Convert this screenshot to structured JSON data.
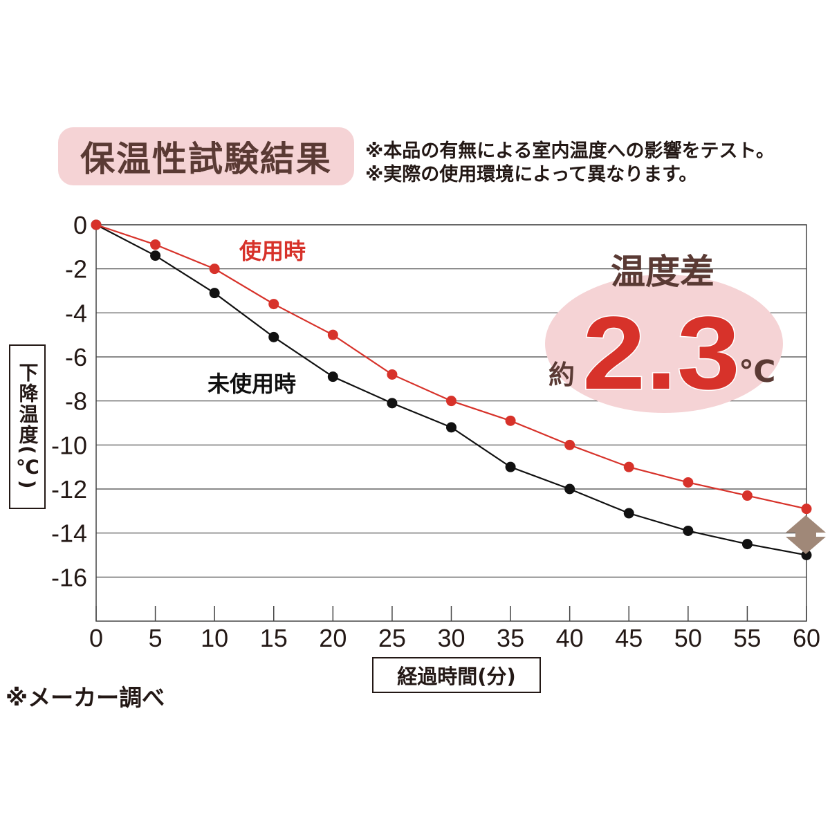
{
  "header": {
    "title": "保温性試験結果",
    "notes": [
      "※本品の有無による室内温度への影響をテスト。",
      "※実際の使用環境によって異なります。"
    ]
  },
  "source_note": "※メーカー調べ",
  "callout": {
    "title": "温度差",
    "prefix": "約",
    "value": "2.3",
    "unit": "℃"
  },
  "colors": {
    "used": "#d7322a",
    "unused": "#111111",
    "badge": "#f5d3d5",
    "arrow": "#a08878"
  },
  "chart_data": {
    "type": "line",
    "xlabel": "経過時間(分)",
    "ylabel": "下降温度(℃)",
    "x": [
      0,
      5,
      10,
      15,
      20,
      25,
      30,
      35,
      40,
      45,
      50,
      55,
      60
    ],
    "xlim": [
      0,
      60
    ],
    "ylim": [
      -18,
      0
    ],
    "xticks": [
      "0",
      "5",
      "10",
      "15",
      "20",
      "25",
      "30",
      "35",
      "40",
      "45",
      "50",
      "55",
      "60"
    ],
    "yticks": [
      "0",
      "-2",
      "-4",
      "-6",
      "-8",
      "-10",
      "-12",
      "-14",
      "-16"
    ],
    "grid": true,
    "series": [
      {
        "name": "使用時",
        "color": "#d7322a",
        "values": [
          0,
          -0.9,
          -2.0,
          -3.6,
          -5.0,
          -6.8,
          -8.0,
          -8.9,
          -10.0,
          -11.0,
          -11.7,
          -12.3,
          -12.9
        ]
      },
      {
        "name": "未使用時",
        "color": "#111111",
        "values": [
          0,
          -1.4,
          -3.1,
          -5.1,
          -6.9,
          -8.1,
          -9.2,
          -11.0,
          -12.0,
          -13.1,
          -13.9,
          -14.5,
          -15.0
        ]
      }
    ]
  }
}
